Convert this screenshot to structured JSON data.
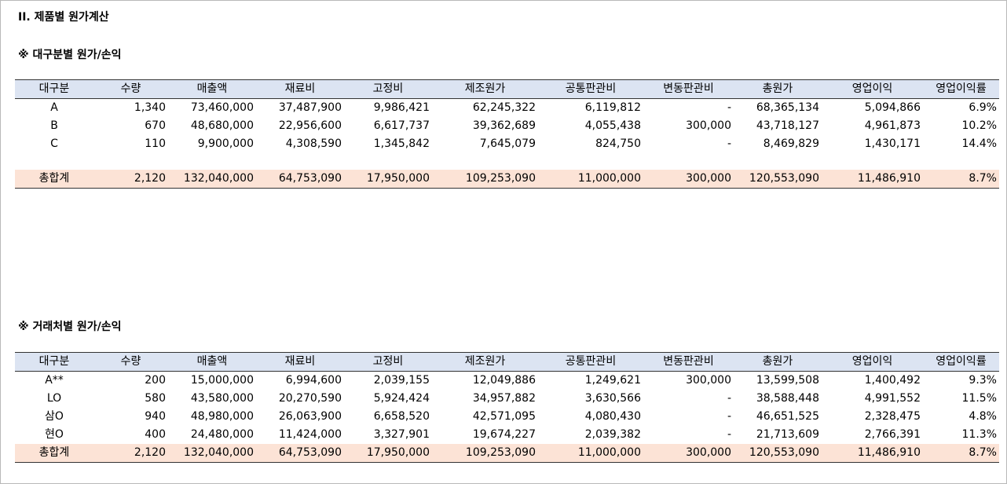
{
  "title": "II. 제품별 원가계산",
  "section1": {
    "heading": "※ 대구분별 원가/손익",
    "headers": [
      "대구분",
      "수량",
      "매출액",
      "재료비",
      "고정비",
      "제조원가",
      "공통판관비",
      "변동판관비",
      "총원가",
      "영업이익",
      "영업이익률"
    ],
    "rows": [
      [
        "A",
        "1,340",
        "73,460,000",
        "37,487,900",
        "9,986,421",
        "62,245,322",
        "6,119,812",
        "-",
        "68,365,134",
        "5,094,866",
        "6.9%"
      ],
      [
        "B",
        "670",
        "48,680,000",
        "22,956,600",
        "6,617,737",
        "39,362,689",
        "4,055,438",
        "300,000",
        "43,718,127",
        "4,961,873",
        "10.2%"
      ],
      [
        "C",
        "110",
        "9,900,000",
        "4,308,590",
        "1,345,842",
        "7,645,079",
        "824,750",
        "-",
        "8,469,829",
        "1,430,171",
        "14.4%"
      ]
    ],
    "total": [
      "총합계",
      "2,120",
      "132,040,000",
      "64,753,090",
      "17,950,000",
      "109,253,090",
      "11,000,000",
      "300,000",
      "120,553,090",
      "11,486,910",
      "8.7%"
    ]
  },
  "section2": {
    "heading": "※ 거래처별 원가/손익",
    "headers": [
      "대구분",
      "수량",
      "매출액",
      "재료비",
      "고정비",
      "제조원가",
      "공통판관비",
      "변동판관비",
      "총원가",
      "영업이익",
      "영업이익률"
    ],
    "rows": [
      [
        "A**",
        "200",
        "15,000,000",
        "6,994,600",
        "2,039,155",
        "12,049,886",
        "1,249,621",
        "300,000",
        "13,599,508",
        "1,400,492",
        "9.3%"
      ],
      [
        "LO",
        "580",
        "43,580,000",
        "20,270,590",
        "5,924,424",
        "34,957,882",
        "3,630,566",
        "-",
        "38,588,448",
        "4,991,552",
        "11.5%"
      ],
      [
        "삼O",
        "940",
        "48,980,000",
        "26,063,900",
        "6,658,520",
        "42,571,095",
        "4,080,430",
        "-",
        "46,651,525",
        "2,328,475",
        "4.8%"
      ],
      [
        "현O",
        "400",
        "24,480,000",
        "11,424,000",
        "3,327,901",
        "19,674,227",
        "2,039,382",
        "-",
        "21,713,609",
        "2,766,391",
        "11.3%"
      ]
    ],
    "total": [
      "총합계",
      "2,120",
      "132,040,000",
      "64,753,090",
      "17,950,000",
      "109,253,090",
      "11,000,000",
      "300,000",
      "120,553,090",
      "11,486,910",
      "8.7%"
    ]
  },
  "colors": {
    "header_bg": "#dce4f2",
    "total_bg": "#fce3d6"
  }
}
